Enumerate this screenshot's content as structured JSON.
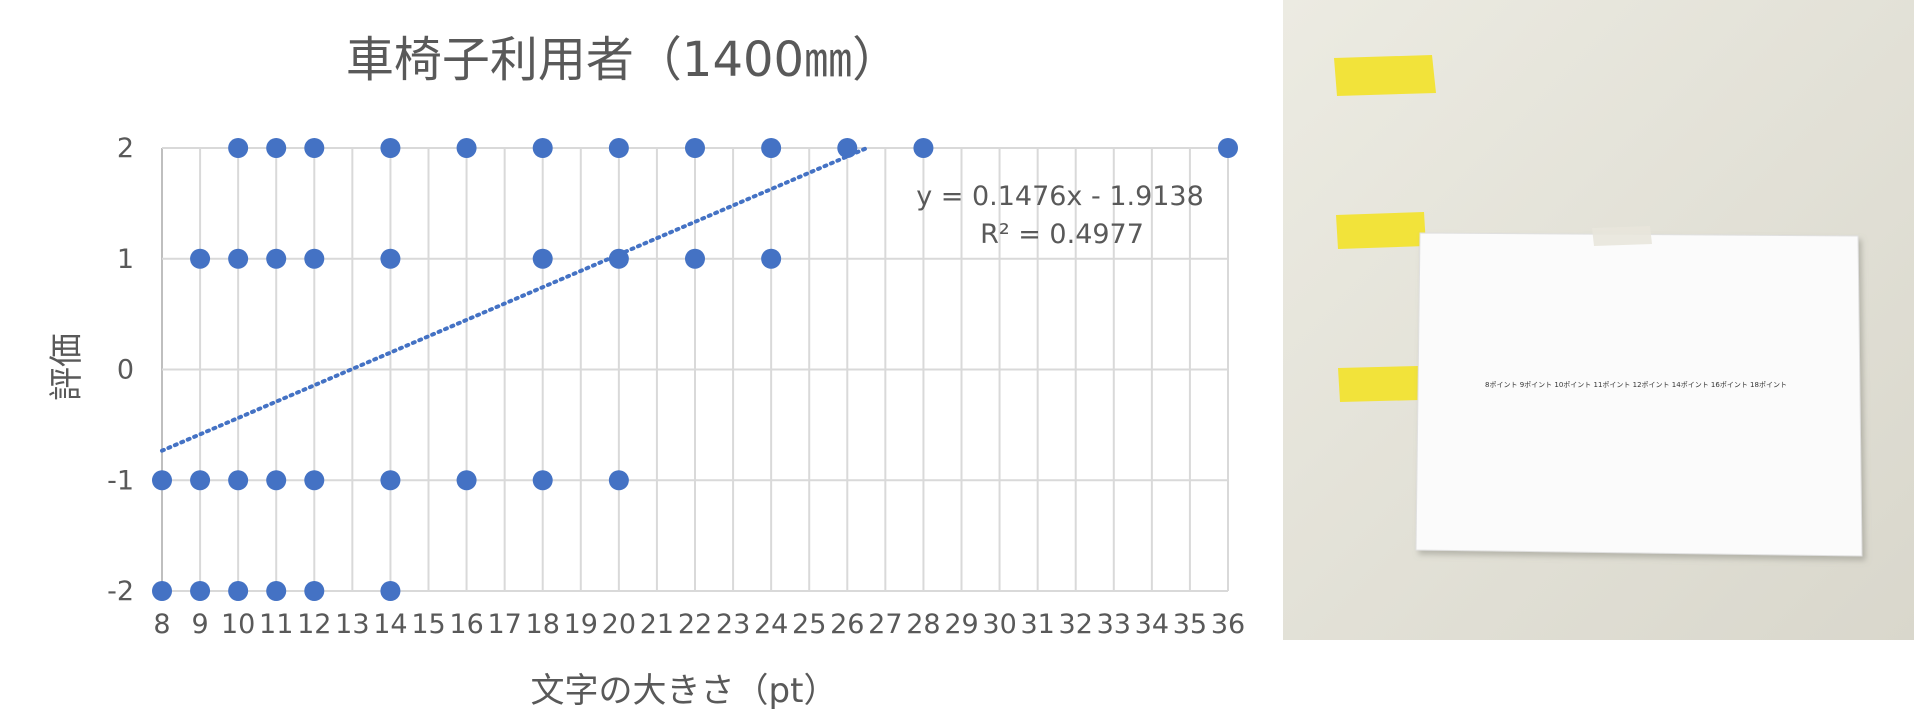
{
  "chart_data": {
    "type": "scatter",
    "title": "車椅子利用者（1400㎜）",
    "xlabel": "文字の大きさ（pt）",
    "ylabel": "評価",
    "xlim": [
      8,
      36
    ],
    "ylim": [
      -2,
      2
    ],
    "x_ticks": [
      8,
      9,
      10,
      11,
      12,
      13,
      14,
      15,
      16,
      17,
      18,
      19,
      20,
      21,
      22,
      23,
      24,
      25,
      26,
      27,
      28,
      29,
      30,
      31,
      32,
      33,
      34,
      35,
      36
    ],
    "y_ticks": [
      -2,
      -1,
      0,
      1,
      2
    ],
    "grid": true,
    "marker_color": "#4472C4",
    "trendline": {
      "slope": 0.1476,
      "intercept": -1.9138,
      "equation": "y = 0.1476x - 1.9138",
      "r2_text": "R² = 0.4977",
      "style": "dotted",
      "x_range": [
        8,
        26.5
      ]
    },
    "series": [
      {
        "points": [
          [
            8,
            -2
          ],
          [
            9,
            -2
          ],
          [
            10,
            -2
          ],
          [
            11,
            -2
          ],
          [
            12,
            -2
          ],
          [
            14,
            -2
          ],
          [
            8,
            -1
          ],
          [
            9,
            -1
          ],
          [
            10,
            -1
          ],
          [
            11,
            -1
          ],
          [
            12,
            -1
          ],
          [
            14,
            -1
          ],
          [
            16,
            -1
          ],
          [
            18,
            -1
          ],
          [
            20,
            -1
          ],
          [
            9,
            1
          ],
          [
            10,
            1
          ],
          [
            11,
            1
          ],
          [
            12,
            1
          ],
          [
            14,
            1
          ],
          [
            18,
            1
          ],
          [
            20,
            1
          ],
          [
            22,
            1
          ],
          [
            24,
            1
          ],
          [
            10,
            2
          ],
          [
            11,
            2
          ],
          [
            12,
            2
          ],
          [
            14,
            2
          ],
          [
            16,
            2
          ],
          [
            18,
            2
          ],
          [
            20,
            2
          ],
          [
            22,
            2
          ],
          [
            24,
            2
          ],
          [
            26,
            2
          ],
          [
            28,
            2
          ],
          [
            36,
            2
          ]
        ]
      }
    ]
  },
  "photo": {
    "wall_color": "#e8e6dc",
    "tape_color": "#f2e33a",
    "paper_color": "#fafafa",
    "paper_lines": [
      "8ポイント 9ポイント 10ポイント 11ポイント 12ポイント 14ポイント 16ポイント 18ポイント"
    ]
  }
}
